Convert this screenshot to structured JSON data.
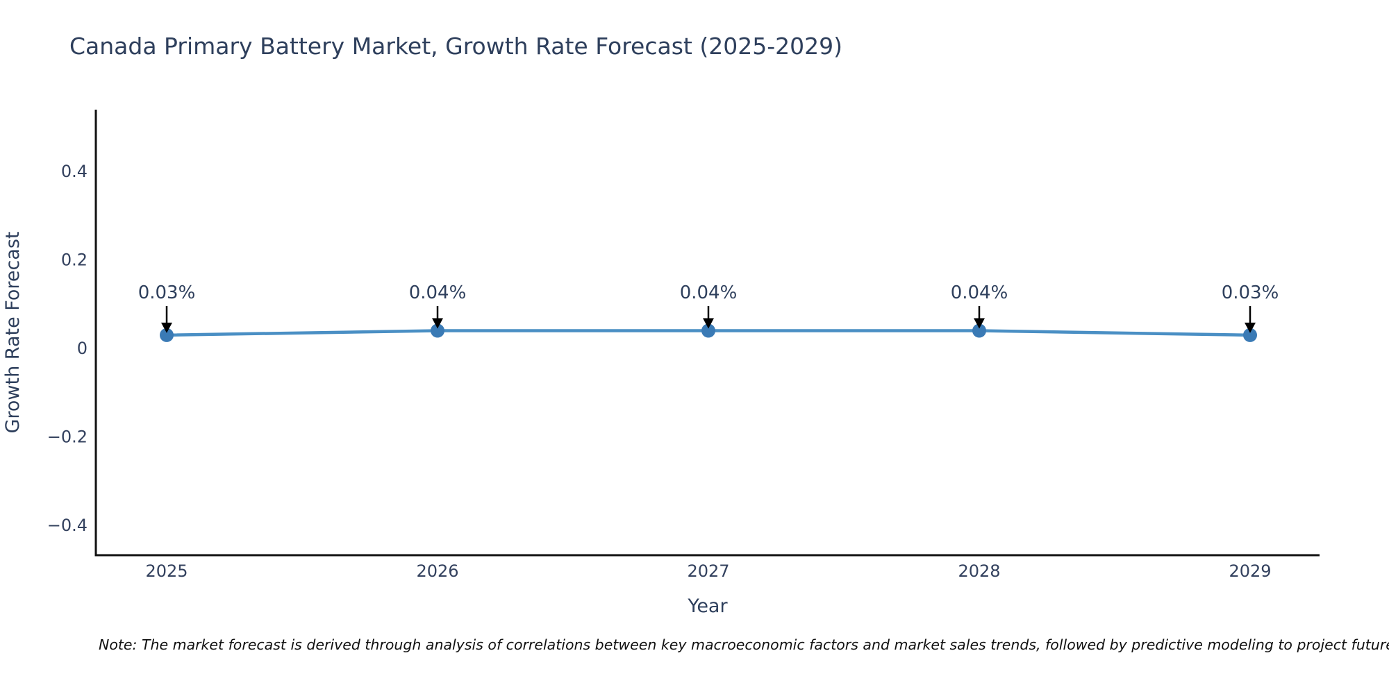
{
  "page": {
    "background": "#ffffff"
  },
  "header": {
    "title": "Canada Primary Battery Market, Growth Rate Forecast (2025-2029)"
  },
  "colors": {
    "title_text": "#2e3f5c",
    "tick_text": "#33415e",
    "axis_label_text": "#2e3f5c",
    "annotation_text": "#2e3f5c",
    "axis_spine": "#111111",
    "arrow": "#000000",
    "note_text": "#111111"
  },
  "chart_data": {
    "type": "line",
    "title": "Canada Primary Battery Market, Growth Rate Forecast (2025-2029)",
    "xlabel": "Year",
    "ylabel": "Growth Rate Forecast",
    "categories": [
      "2025",
      "2026",
      "2027",
      "2028",
      "2029"
    ],
    "series": [
      {
        "name": "Growth Rate Forecast",
        "values": [
          0.03,
          0.04,
          0.04,
          0.04,
          0.03
        ]
      }
    ],
    "point_labels": [
      "0.03%",
      "0.04%",
      "0.04%",
      "0.04%",
      "0.03%"
    ],
    "yticks": [
      0.4,
      0.2,
      0,
      -0.2,
      -0.4
    ],
    "ytick_labels": [
      "0.4",
      "0.2",
      "0",
      "−0.2",
      "−0.4"
    ],
    "ylim": [
      -0.47,
      0.54
    ],
    "grid": false,
    "legend": "none",
    "line_color": "#4a8fc4",
    "marker_color": "#3a7ab5"
  },
  "footnote": {
    "text": "Note: The market forecast is derived through analysis of correlations between key macroeconomic factors and market sales trends, followed by predictive modeling to project future sa"
  }
}
